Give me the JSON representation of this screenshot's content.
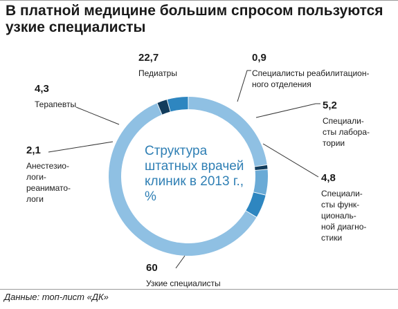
{
  "title_lines": [
    "В платной медицине большим спросом пользуются",
    "узкие специалисты"
  ],
  "source": "Данные: топ-лист «ДК»",
  "chart_data": {
    "type": "pie",
    "donut": true,
    "center_text": [
      "Структура",
      "штатных врачей",
      "клиник в 2013 г.,",
      "%"
    ],
    "slices": [
      {
        "name": "Педиатры",
        "value": 22.7,
        "value_label": "22,7",
        "color": "#8fc0e3",
        "label_lines": [
          "Педиатры"
        ]
      },
      {
        "name": "Специалисты реабилитационного отделения",
        "value": 0.9,
        "value_label": "0,9",
        "color": "#123c5c",
        "label_lines": [
          "Специалисты реабилитацион-",
          "ного отделения"
        ]
      },
      {
        "name": "Специалисты лаборатории",
        "value": 5.2,
        "value_label": "5,2",
        "color": "#6aaad6",
        "label_lines": [
          "Специали-",
          "сты лабора-",
          "тории"
        ]
      },
      {
        "name": "Специалисты функциональной диагностики",
        "value": 4.8,
        "value_label": "4,8",
        "color": "#2e86c0",
        "label_lines": [
          "Специали-",
          "сты функ-",
          "циональ-",
          "ной диагно-",
          "стики"
        ]
      },
      {
        "name": "Узкие специалисты",
        "value": 60,
        "value_label": "60",
        "color": "#8fc0e3",
        "label_lines": [
          "Узкие специалисты"
        ]
      },
      {
        "name": "Анестезиологи-реаниматологи",
        "value": 2.1,
        "value_label": "2,1",
        "color": "#123c5c",
        "label_lines": [
          "Анестезио-",
          "логи-",
          "реанимато-",
          "логи"
        ]
      },
      {
        "name": "Терапевты",
        "value": 4.3,
        "value_label": "4,3",
        "color": "#2e86c0",
        "label_lines": [
          "Терапевты"
        ]
      }
    ]
  }
}
